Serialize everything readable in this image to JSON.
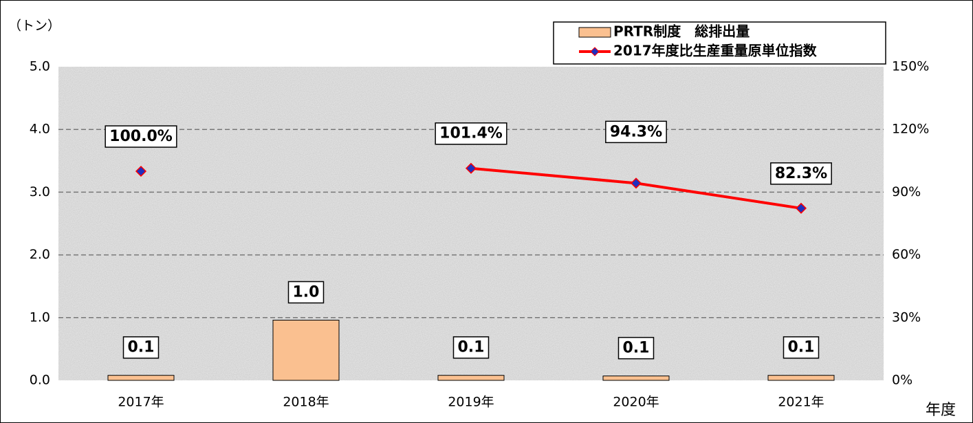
{
  "chart_data": {
    "type": "bar",
    "y_axis_label": "（トン）",
    "x_axis_label": "年度",
    "categories": [
      "2017年",
      "2018年",
      "2019年",
      "2020年",
      "2021年"
    ],
    "series": [
      {
        "name": "PRTR制度　総排出量",
        "type": "bar",
        "color": "#fac090",
        "values": [
          0.08,
          0.96,
          0.08,
          0.07,
          0.08
        ],
        "value_labels": [
          "0.1",
          "1.0",
          "0.1",
          "0.1",
          "0.1"
        ]
      },
      {
        "name": "2017年度比生産重量原単位指数",
        "type": "line",
        "axis": "y2",
        "color": "#ff0000",
        "marker_color": "#1f2fbf",
        "values": [
          100.0,
          null,
          101.4,
          94.3,
          82.3
        ],
        "value_labels": [
          "100.0%",
          null,
          "101.4%",
          "94.3%",
          "82.3%"
        ]
      }
    ],
    "ylim": [
      0,
      5
    ],
    "yticks": [
      {
        "value": 0,
        "label": "0.0"
      },
      {
        "value": 1,
        "label": "1.0"
      },
      {
        "value": 2,
        "label": "2.0"
      },
      {
        "value": 3,
        "label": "3.0"
      },
      {
        "value": 4,
        "label": "4.0"
      },
      {
        "value": 5,
        "label": "5.0"
      }
    ],
    "y2lim": [
      0,
      150
    ],
    "y2ticks": [
      {
        "value": 0,
        "label": "0%"
      },
      {
        "value": 30,
        "label": "30%"
      },
      {
        "value": 60,
        "label": "60%"
      },
      {
        "value": 90,
        "label": "90%"
      },
      {
        "value": 120,
        "label": "120%"
      },
      {
        "value": 150,
        "label": "150%"
      }
    ],
    "grid": true,
    "legend": "top-right"
  }
}
